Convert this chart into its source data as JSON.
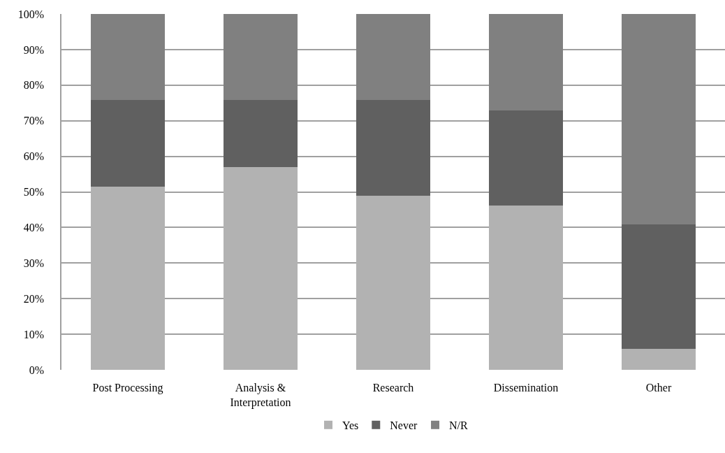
{
  "chart_data": {
    "type": "bar",
    "stacked": true,
    "categories": [
      "Post Processing",
      "Analysis & Interpretation",
      "Research",
      "Dissemination",
      "Other"
    ],
    "series": [
      {
        "name": "Yes",
        "color": "#b2b2b2",
        "values": [
          51.5,
          57.0,
          48.9,
          46.1,
          5.8
        ]
      },
      {
        "name": "Never",
        "color": "#606060",
        "values": [
          24.3,
          18.8,
          27.0,
          26.8,
          35.0
        ]
      },
      {
        "name": "N/R",
        "color": "#808080",
        "values": [
          24.2,
          24.2,
          24.1,
          27.1,
          59.2
        ]
      }
    ],
    "ylim": [
      0,
      100
    ],
    "yticks": [
      {
        "value": 0,
        "label": "0%"
      },
      {
        "value": 10,
        "label": "10%"
      },
      {
        "value": 20,
        "label": "20%"
      },
      {
        "value": 30,
        "label": "30%"
      },
      {
        "value": 40,
        "label": "40%"
      },
      {
        "value": 50,
        "label": "50%"
      },
      {
        "value": 60,
        "label": "60%"
      },
      {
        "value": 70,
        "label": "70%"
      },
      {
        "value": 80,
        "label": "80%"
      },
      {
        "value": 90,
        "label": "90%"
      },
      {
        "value": 100,
        "label": "100%"
      }
    ],
    "grid": "y",
    "legend": "bottom"
  }
}
